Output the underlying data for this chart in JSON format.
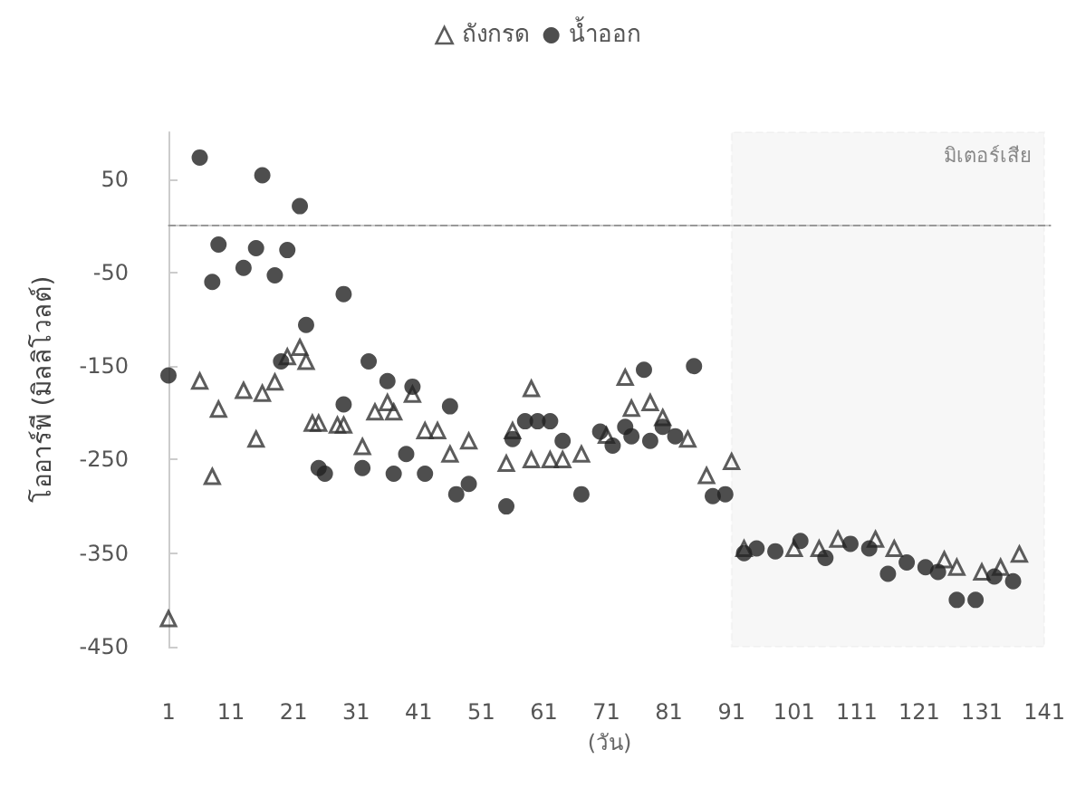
{
  "chart_data": {
    "type": "scatter",
    "xlabel": "(วัน)",
    "ylabel": "โออาร์พี (มิลลิโวลต์)",
    "xlim": [
      1,
      142
    ],
    "xticks": [
      1,
      11,
      21,
      31,
      41,
      51,
      61,
      71,
      81,
      91,
      101,
      111,
      121,
      131,
      141
    ],
    "ylim": [
      -450,
      100
    ],
    "yticks": [
      -450,
      -350,
      -250,
      -150,
      -50,
      50
    ],
    "grid": false,
    "legend": "top",
    "ref_lines": [
      {
        "axis": "y",
        "value": 0,
        "line_style": "dashed",
        "color": "#999999"
      }
    ],
    "bands": [
      {
        "axis": "x",
        "from": 91,
        "to": 141,
        "label": "มิเตอร์เสีย",
        "color": "#bbbbbb"
      }
    ],
    "series": [
      {
        "name": "ถังกรด",
        "color": "#333333",
        "marker": "triangle",
        "x": [
          1,
          6,
          8,
          9,
          13,
          15,
          16,
          18,
          20,
          22,
          23,
          24,
          25,
          28,
          29,
          32,
          34,
          36,
          37,
          40,
          42,
          44,
          46,
          49,
          55,
          56,
          59,
          59,
          62,
          64,
          67,
          71,
          74,
          75,
          78,
          80,
          84,
          87,
          91,
          93,
          101,
          105,
          108,
          114,
          117,
          125,
          127,
          131,
          134,
          137
        ],
        "values": [
          -420,
          -166,
          -268,
          -196,
          -176,
          -228,
          -179,
          -167,
          -140,
          -130,
          -145,
          -211,
          -211,
          -213,
          -213,
          -236,
          -199,
          -189,
          -199,
          -180,
          -219,
          -219,
          -244,
          -230,
          -254,
          -219,
          -174,
          -250,
          -250,
          -250,
          -244,
          -224,
          -162,
          -195,
          -189,
          -205,
          -228,
          -267,
          -252,
          -345,
          -345,
          -345,
          -335,
          -335,
          -345,
          -357,
          -365,
          -370,
          -365,
          -351
        ]
      },
      {
        "name": "น้ำออก",
        "color": "#222222",
        "marker": "circle",
        "x": [
          1,
          6,
          8,
          9,
          13,
          15,
          16,
          18,
          19,
          20,
          22,
          23,
          25,
          26,
          29,
          29,
          32,
          33,
          36,
          37,
          39,
          40,
          42,
          46,
          47,
          49,
          55,
          56,
          58,
          60,
          62,
          64,
          67,
          70,
          72,
          74,
          75,
          77,
          78,
          80,
          82,
          85,
          88,
          90,
          93,
          95,
          98,
          102,
          106,
          110,
          113,
          116,
          119,
          122,
          124,
          127,
          130,
          133,
          136
        ],
        "values": [
          -160,
          73,
          -60,
          -20,
          -45,
          -24,
          54,
          -53,
          -145,
          -26,
          21,
          -106,
          -259,
          -265,
          -73,
          -191,
          -259,
          -145,
          -166,
          -265,
          -244,
          -172,
          -265,
          -193,
          -287,
          -276,
          -300,
          -228,
          -209,
          -209,
          -209,
          -230,
          -287,
          -220,
          -235,
          -215,
          -225,
          -154,
          -230,
          -215,
          -225,
          -150,
          -289,
          -287,
          -350,
          -345,
          -348,
          -337,
          -355,
          -340,
          -345,
          -372,
          -360,
          -365,
          -370,
          -400,
          -400,
          -375,
          -380
        ]
      }
    ]
  }
}
